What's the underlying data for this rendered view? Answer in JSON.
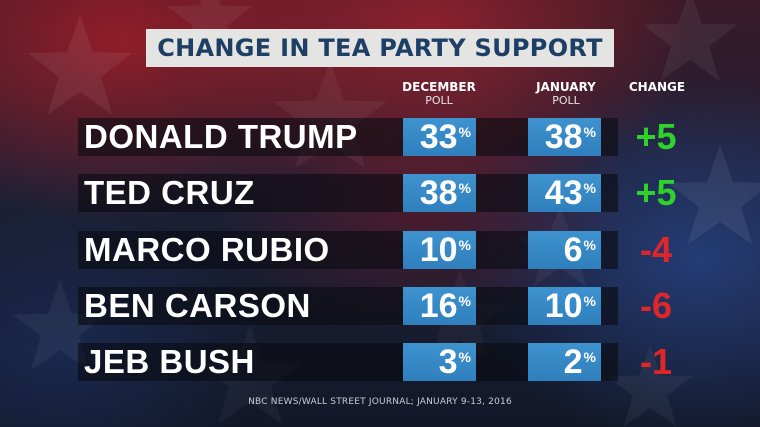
{
  "title": "CHANGE IN TEA PARTY SUPPORT",
  "headers": {
    "december": "DECEMBER",
    "december_sub": "POLL",
    "january": "JANUARY",
    "january_sub": "POLL",
    "change": "CHANGE"
  },
  "rows": [
    {
      "name": "DONALD TRUMP",
      "december": "33",
      "january": "38",
      "change": "+5"
    },
    {
      "name": "TED CRUZ",
      "december": "38",
      "january": "43",
      "change": "+5"
    },
    {
      "name": "MARCO RUBIO",
      "december": "10",
      "january": "6",
      "change": "-4"
    },
    {
      "name": "BEN CARSON",
      "december": "16",
      "january": "10",
      "change": "-6"
    },
    {
      "name": "JEB BUSH",
      "december": "3",
      "january": "2",
      "change": "-1"
    }
  ],
  "percent_sign": "%",
  "colors": {
    "positive": "#2fd12b",
    "negative": "#e1262a",
    "cell": "#3a8dcb",
    "title_text": "#1d3f66",
    "title_bg": "#e4e4e2"
  },
  "source": "NBC NEWS/WALL STREET JOURNAL; JANUARY 9-13, 2016",
  "chart_data": {
    "type": "table",
    "title": "CHANGE IN TEA PARTY SUPPORT",
    "columns": [
      "DECEMBER POLL",
      "JANUARY POLL",
      "CHANGE"
    ],
    "categories": [
      "DONALD TRUMP",
      "TED CRUZ",
      "MARCO RUBIO",
      "BEN CARSON",
      "JEB BUSH"
    ],
    "series": [
      {
        "name": "DECEMBER POLL",
        "values": [
          33,
          38,
          10,
          16,
          3
        ]
      },
      {
        "name": "JANUARY POLL",
        "values": [
          38,
          43,
          6,
          10,
          2
        ]
      },
      {
        "name": "CHANGE",
        "values": [
          5,
          5,
          -4,
          -6,
          -1
        ]
      }
    ],
    "unit": "%"
  }
}
